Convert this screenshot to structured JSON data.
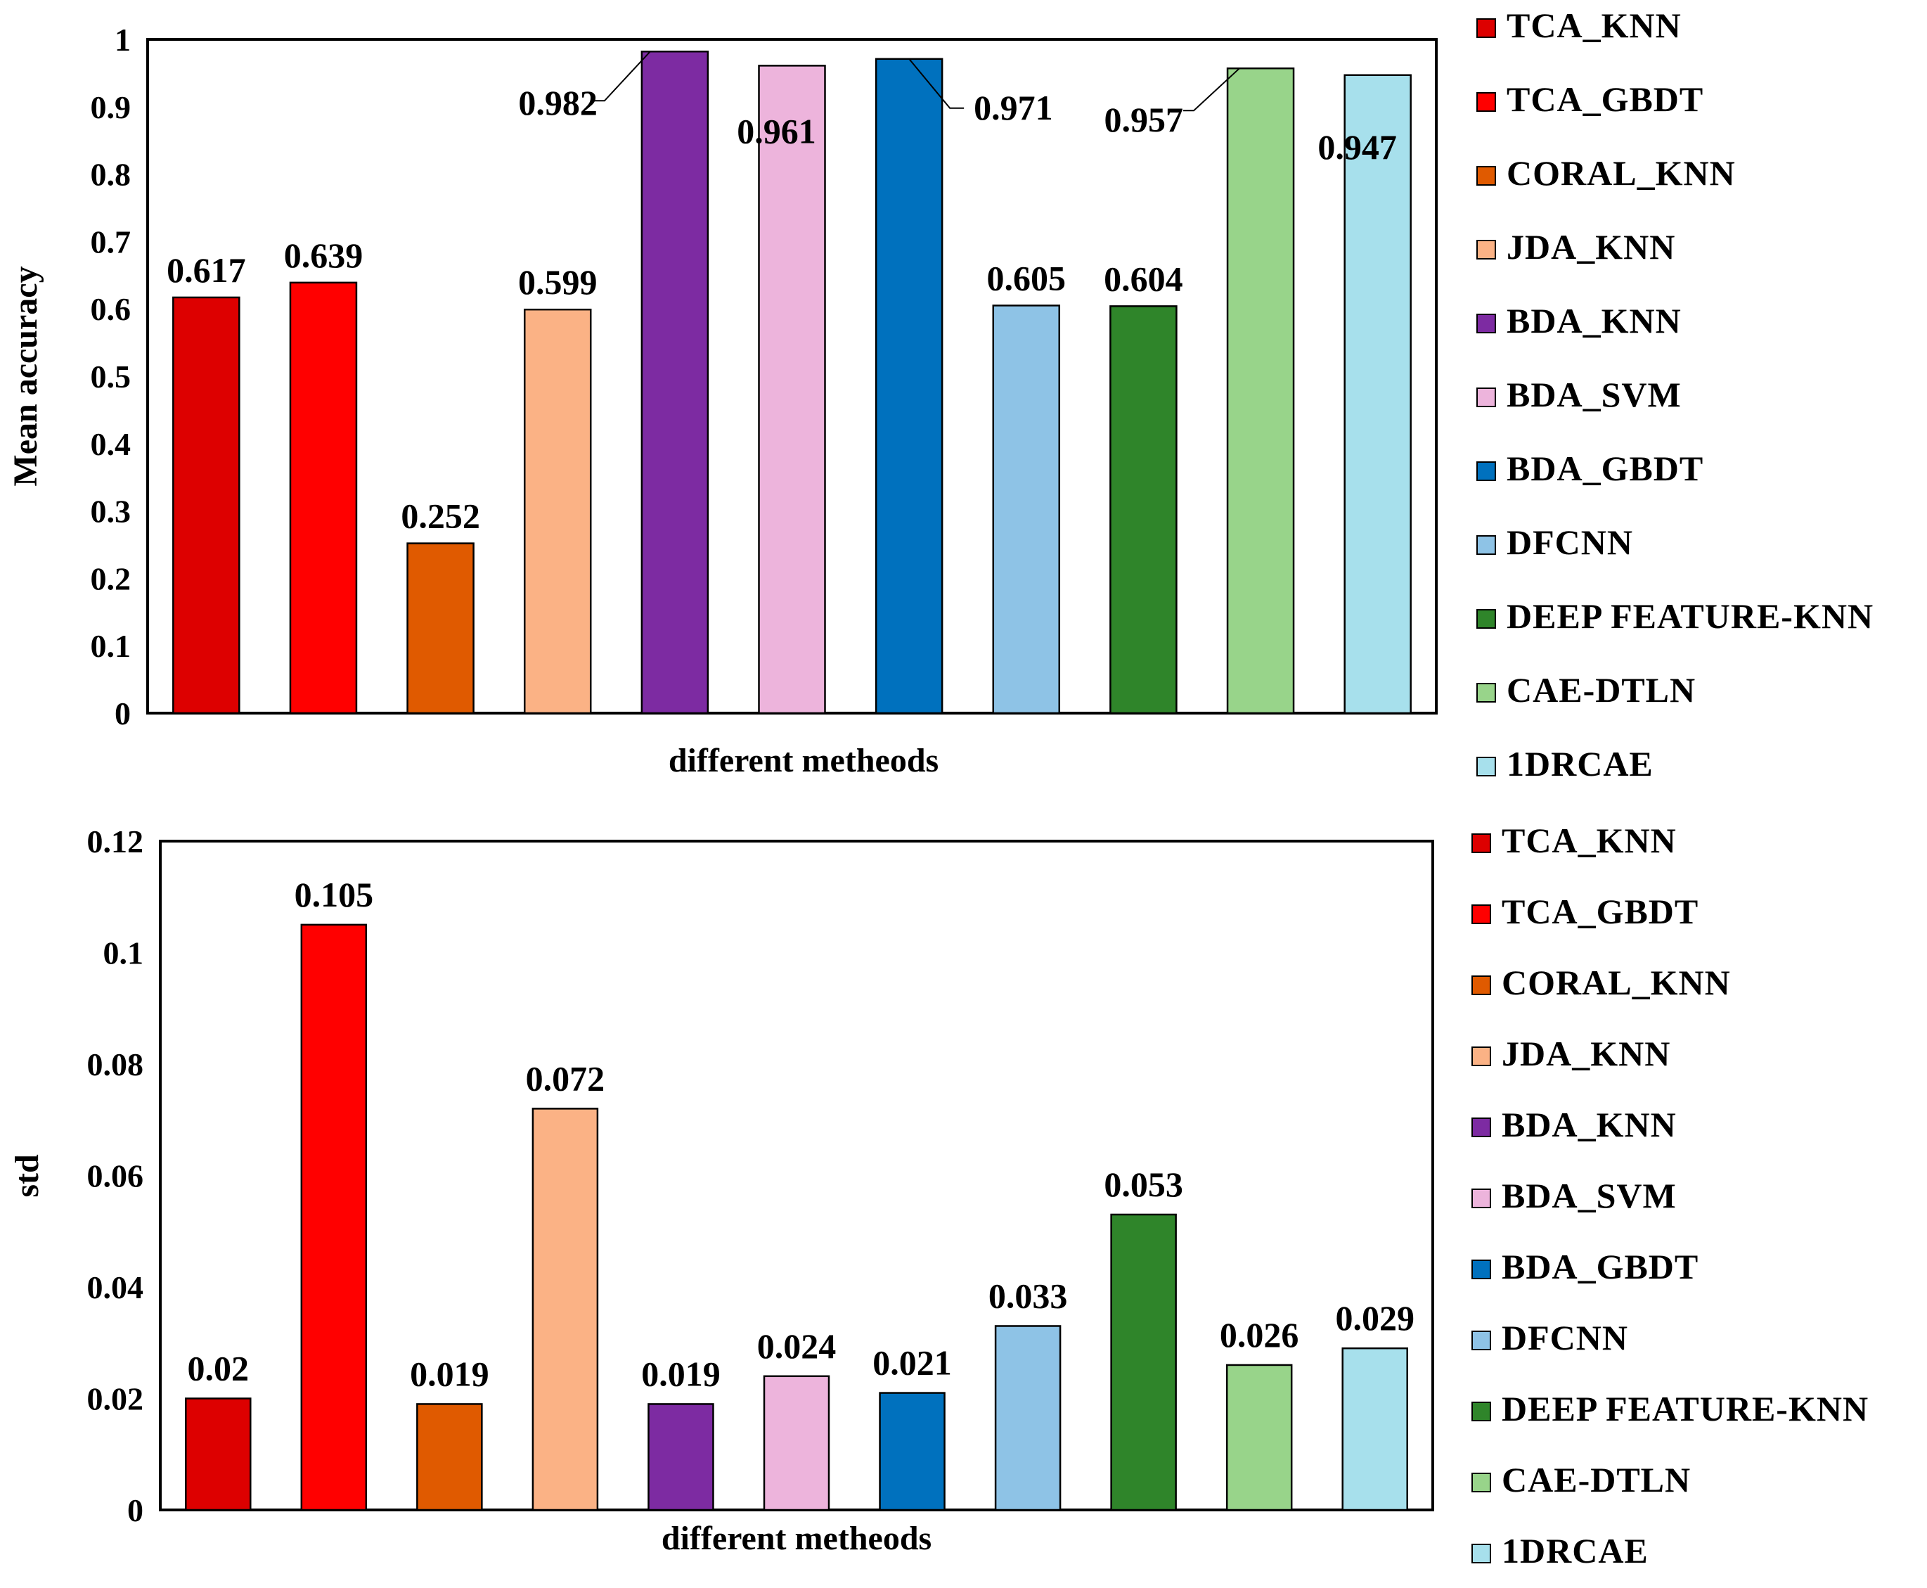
{
  "chart_data": [
    {
      "type": "bar",
      "categories": [
        "TCA_KNN",
        "TCA_GBDT",
        "CORAL_KNN",
        "JDA_KNN",
        "BDA_KNN",
        "BDA_SVM",
        "BDA_GBDT",
        "DFCNN",
        "DEEP FEATURE-KNN",
        "CAE-DTLN",
        "1DRCAE"
      ],
      "values": [
        0.617,
        0.639,
        0.252,
        0.599,
        0.982,
        0.961,
        0.971,
        0.605,
        0.604,
        0.957,
        0.947
      ],
      "data_labels": [
        "0.617",
        "0.639",
        "0.252",
        "0.599",
        "0.982",
        "0.961",
        "0.971",
        "0.605",
        "0.604",
        "0.957",
        "0.947"
      ],
      "title": "",
      "xlabel": "different metheods",
      "ylabel": "Mean accuracy",
      "ylim": [
        0,
        1
      ],
      "yticks": [
        "0",
        "0.1",
        "0.2",
        "0.3",
        "0.4",
        "0.5",
        "0.6",
        "0.7",
        "0.8",
        "0.9",
        "1"
      ],
      "legend_labels": [
        "TCA_KNN",
        "TCA_GBDT",
        "CORAL_KNN",
        "JDA_KNN",
        "BDA_KNN",
        "BDA_SVM",
        "BDA_GBDT",
        "DFCNN",
        "DEEP FEATURE-KNN",
        "CAE-DTLN",
        "1DRCAE"
      ],
      "legend_position": "right",
      "grid": false
    },
    {
      "type": "bar",
      "categories": [
        "TCA_KNN",
        "TCA_GBDT",
        "CORAL_KNN",
        "JDA_KNN",
        "BDA_KNN",
        "BDA_SVM",
        "BDA_GBDT",
        "DFCNN",
        "DEEP FEATURE-KNN",
        "CAE-DTLN",
        "1DRCAE"
      ],
      "values": [
        0.02,
        0.105,
        0.019,
        0.072,
        0.019,
        0.024,
        0.021,
        0.033,
        0.053,
        0.026,
        0.029
      ],
      "data_labels": [
        "0.02",
        "0.105",
        "0.019",
        "0.072",
        "0.019",
        "0.024",
        "0.021",
        "0.033",
        "0.053",
        "0.026",
        "0.029"
      ],
      "title": "",
      "xlabel": "different metheods",
      "ylabel": "std",
      "ylim": [
        0,
        0.12
      ],
      "yticks": [
        "0",
        "0.02",
        "0.04",
        "0.06",
        "0.08",
        "0.1",
        "0.12"
      ],
      "legend_labels": [
        "TCA_KNN",
        "TCA_GBDT",
        "CORAL_KNN",
        "JDA_KNN",
        "BDA_KNN",
        "BDA_SVM",
        "BDA_GBDT",
        "DFCNN",
        "DEEP FEATURE-KNN",
        "CAE-DTLN",
        "1DRCAE"
      ],
      "legend_position": "right",
      "grid": false
    }
  ],
  "colors": [
    "#DD0000",
    "#FF0000",
    "#E05A00",
    "#FBB285",
    "#7D2BA2",
    "#EDB4DC",
    "#0071BE",
    "#8EC3E6",
    "#2F852A",
    "#98D48A",
    "#A7E0EC"
  ]
}
